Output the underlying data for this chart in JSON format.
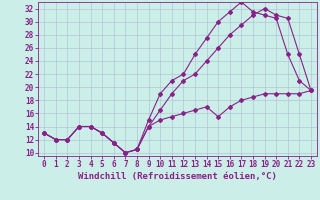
{
  "xlabel": "Windchill (Refroidissement éolien,°C)",
  "xlim": [
    -0.5,
    23.5
  ],
  "ylim": [
    9.5,
    33
  ],
  "xticks": [
    0,
    1,
    2,
    3,
    4,
    5,
    6,
    7,
    8,
    9,
    10,
    11,
    12,
    13,
    14,
    15,
    16,
    17,
    18,
    19,
    20,
    21,
    22,
    23
  ],
  "yticks": [
    10,
    12,
    14,
    16,
    18,
    20,
    22,
    24,
    26,
    28,
    30,
    32
  ],
  "background_color": "#cceee8",
  "grid_color": "#aabbcc",
  "line_color": "#882288",
  "line1_x": [
    0,
    1,
    2,
    3,
    4,
    5,
    6,
    7,
    8,
    9,
    10,
    11,
    12,
    13,
    14,
    15,
    16,
    17,
    18,
    19,
    20,
    21,
    22,
    23
  ],
  "line1_y": [
    13,
    12,
    12,
    14,
    14,
    13,
    11.5,
    10,
    10.5,
    15,
    19,
    21,
    22,
    25,
    27.5,
    30,
    31.5,
    33,
    31.5,
    31,
    30.5,
    25,
    21,
    19.5
  ],
  "line2_x": [
    0,
    1,
    2,
    3,
    4,
    5,
    6,
    7,
    8,
    9,
    10,
    11,
    12,
    13,
    14,
    15,
    16,
    17,
    18,
    19,
    20,
    21,
    22,
    23
  ],
  "line2_y": [
    13,
    12,
    12,
    14,
    14,
    13,
    11.5,
    10,
    10.5,
    14,
    16.5,
    19,
    21,
    22,
    24,
    26,
    28,
    29.5,
    31,
    32,
    31,
    30.5,
    25,
    19.5
  ],
  "line3_x": [
    0,
    1,
    2,
    3,
    4,
    5,
    6,
    7,
    8,
    9,
    10,
    11,
    12,
    13,
    14,
    15,
    16,
    17,
    18,
    19,
    20,
    21,
    22,
    23
  ],
  "line3_y": [
    13,
    12,
    12,
    14,
    14,
    13,
    11.5,
    10,
    10.5,
    14,
    15,
    15.5,
    16,
    16.5,
    17,
    15.5,
    17,
    18,
    18.5,
    19,
    19,
    19,
    19,
    19.5
  ],
  "tick_fontsize": 5.5,
  "xlabel_fontsize": 6.5,
  "marker": "D",
  "markersize": 2.0,
  "linewidth": 0.8
}
